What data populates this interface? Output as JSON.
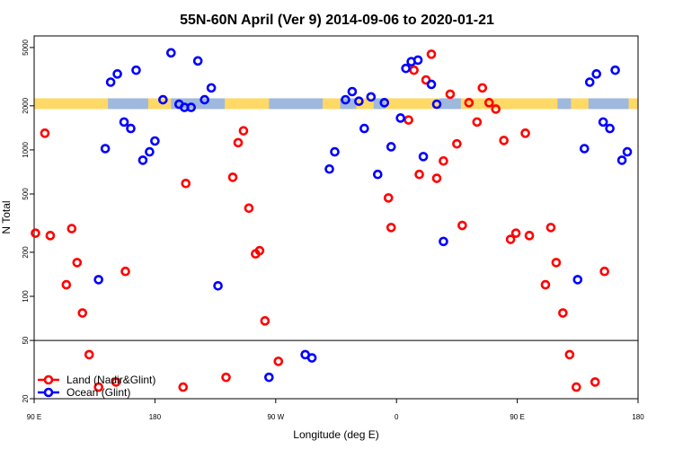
{
  "chart_data": {
    "type": "scatter",
    "title": "55N-60N April (Ver 9)   2014-09-06 to 2020-01-21",
    "xlabel": "Longitude (deg E)",
    "ylabel": "N Total",
    "x_scale": "longitude, 90E on left, through 180, 90W, 0, 90E to 180 on right",
    "xlim": [
      90,
      540
    ],
    "y_scale": "log",
    "ylim": [
      20,
      6000
    ],
    "x_ticks": [
      {
        "value": 90,
        "label": "90 E"
      },
      {
        "value": 180,
        "label": "180"
      },
      {
        "value": 270,
        "label": "90 W"
      },
      {
        "value": 360,
        "label": "0"
      },
      {
        "value": 450,
        "label": "90 E"
      },
      {
        "value": 540,
        "label": "180"
      }
    ],
    "y_ticks": [
      {
        "value": 20,
        "label": "20"
      },
      {
        "value": 50,
        "label": "50"
      },
      {
        "value": 100,
        "label": "100"
      },
      {
        "value": 200,
        "label": "200"
      },
      {
        "value": 500,
        "label": "500"
      },
      {
        "value": 1000,
        "label": "1000"
      },
      {
        "value": 2000,
        "label": "2000"
      },
      {
        "value": 5000,
        "label": "5000"
      }
    ],
    "reference_line": 50,
    "grid": false,
    "legend_position": "bottom-left",
    "land_strip": {
      "ymin": 1900,
      "ymax": 2250,
      "land_color": "#ffd966",
      "ocean_color": "#9fb8dd"
    },
    "series": [
      {
        "name": "Land (Nadir&Glint)",
        "color": "#ff0000",
        "points": [
          [
            91,
            270
          ],
          [
            98,
            1300
          ],
          [
            102,
            260
          ],
          [
            114,
            120
          ],
          [
            118,
            290
          ],
          [
            122,
            170
          ],
          [
            126,
            77
          ],
          [
            131,
            40
          ],
          [
            138,
            24
          ],
          [
            151,
            26
          ],
          [
            158,
            148
          ],
          [
            201,
            24
          ],
          [
            203,
            590
          ],
          [
            233,
            28
          ],
          [
            238,
            650
          ],
          [
            242,
            1120
          ],
          [
            246,
            1350
          ],
          [
            250,
            400
          ],
          [
            255,
            195
          ],
          [
            258,
            205
          ],
          [
            262,
            68
          ],
          [
            272,
            36
          ],
          [
            354,
            470
          ],
          [
            356,
            295
          ],
          [
            369,
            1600
          ],
          [
            373,
            3500
          ],
          [
            377,
            680
          ],
          [
            382,
            3000
          ],
          [
            386,
            4500
          ],
          [
            390,
            640
          ],
          [
            395,
            840
          ],
          [
            400,
            2400
          ],
          [
            405,
            1100
          ],
          [
            409,
            305
          ],
          [
            414,
            2100
          ],
          [
            420,
            1550
          ],
          [
            424,
            2650
          ],
          [
            429,
            2100
          ],
          [
            434,
            1900
          ],
          [
            440,
            1160
          ],
          [
            445,
            245
          ],
          [
            449,
            270
          ],
          [
            456,
            1300
          ],
          [
            459,
            260
          ],
          [
            471,
            120
          ],
          [
            475,
            295
          ],
          [
            479,
            170
          ],
          [
            484,
            77
          ],
          [
            489,
            40
          ],
          [
            494,
            24
          ],
          [
            508,
            26
          ],
          [
            515,
            148
          ]
        ]
      },
      {
        "name": "Ocean (Glint)",
        "color": "#0000ff",
        "points": [
          [
            138,
            130
          ],
          [
            143,
            1020
          ],
          [
            147,
            2900
          ],
          [
            152,
            3300
          ],
          [
            157,
            1550
          ],
          [
            162,
            1400
          ],
          [
            166,
            3500
          ],
          [
            171,
            850
          ],
          [
            176,
            970
          ],
          [
            180,
            1150
          ],
          [
            186,
            2200
          ],
          [
            192,
            4600
          ],
          [
            198,
            2050
          ],
          [
            202,
            1950
          ],
          [
            207,
            1950
          ],
          [
            212,
            4050
          ],
          [
            217,
            2200
          ],
          [
            222,
            2650
          ],
          [
            227,
            118
          ],
          [
            265,
            28
          ],
          [
            292,
            40
          ],
          [
            297,
            38
          ],
          [
            310,
            740
          ],
          [
            314,
            970
          ],
          [
            322,
            2200
          ],
          [
            327,
            2500
          ],
          [
            332,
            2150
          ],
          [
            336,
            1400
          ],
          [
            341,
            2300
          ],
          [
            346,
            680
          ],
          [
            351,
            2100
          ],
          [
            356,
            1050
          ],
          [
            363,
            1650
          ],
          [
            367,
            3600
          ],
          [
            371,
            4000
          ],
          [
            376,
            4100
          ],
          [
            380,
            900
          ],
          [
            386,
            2800
          ],
          [
            390,
            2050
          ],
          [
            395,
            237
          ],
          [
            495,
            130
          ],
          [
            500,
            1020
          ],
          [
            504,
            2900
          ],
          [
            509,
            3300
          ],
          [
            514,
            1550
          ],
          [
            519,
            1400
          ],
          [
            523,
            3500
          ],
          [
            528,
            850
          ],
          [
            532,
            970
          ]
        ]
      }
    ]
  }
}
